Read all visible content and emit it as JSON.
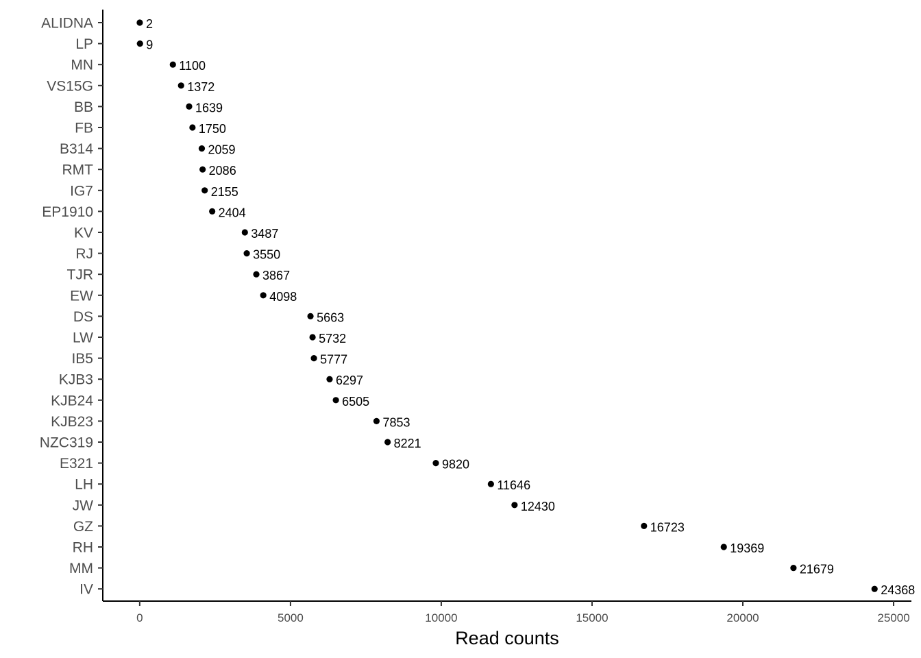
{
  "chart_data": {
    "type": "scatter",
    "categories": [
      "ALIDNA",
      "LP",
      "MN",
      "VS15G",
      "BB",
      "FB",
      "B314",
      "RMT",
      "IG7",
      "EP1910",
      "KV",
      "RJ",
      "TJR",
      "EW",
      "DS",
      "LW",
      "IB5",
      "KJB3",
      "KJB24",
      "KJB23",
      "NZC319",
      "E321",
      "LH",
      "JW",
      "GZ",
      "RH",
      "MM",
      "IV"
    ],
    "values": [
      2,
      9,
      1100,
      1372,
      1639,
      1750,
      2059,
      2086,
      2155,
      2404,
      3487,
      3550,
      3867,
      4098,
      5663,
      5732,
      5777,
      6297,
      6505,
      7853,
      8221,
      9820,
      11646,
      12430,
      16723,
      19369,
      21679,
      24368
    ],
    "data_labels": [
      "2",
      "9",
      "1100",
      "1372",
      "1639",
      "1750",
      "2059",
      "2086",
      "2155",
      "2404",
      "3487",
      "3550",
      "3867",
      "4098",
      "5663",
      "5732",
      "5777",
      "6297",
      "6505",
      "7853",
      "8221",
      "9820",
      "11646",
      "12430",
      "16723",
      "19369",
      "21679",
      "24368"
    ],
    "x_ticks": [
      0,
      5000,
      10000,
      15000,
      20000,
      25000
    ],
    "x_tick_labels": [
      "0",
      "5000",
      "10000",
      "15000",
      "20000",
      "25000"
    ],
    "xlim": [
      -1224,
      25590
    ],
    "title": "",
    "xlabel": "Read counts",
    "ylabel": "",
    "grid": false,
    "legend": "none",
    "point_color": "#000000",
    "label_color": "#000000",
    "tick_label_color": "#4d4d4d"
  }
}
